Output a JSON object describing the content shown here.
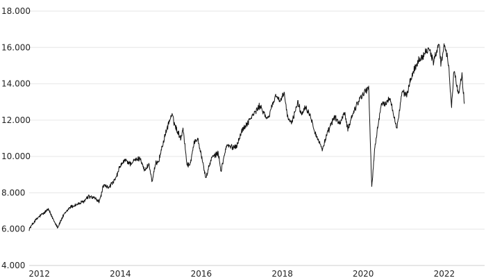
{
  "chart_data": {
    "type": "line",
    "title": "",
    "xlabel": "",
    "ylabel": "",
    "grid": true,
    "ylim": [
      4000,
      18000
    ],
    "xlim": [
      "2011-10-01",
      "2022-12-31"
    ],
    "y_ticks": [
      {
        "value": 4000,
        "label": "4.000"
      },
      {
        "value": 6000,
        "label": "6.000"
      },
      {
        "value": 8000,
        "label": "8.000"
      },
      {
        "value": 10000,
        "label": "10.000"
      },
      {
        "value": 12000,
        "label": "12.000"
      },
      {
        "value": 14000,
        "label": "14.000"
      },
      {
        "value": 16000,
        "label": "16.000"
      },
      {
        "value": 18000,
        "label": "18.000"
      }
    ],
    "x_ticks": [
      {
        "value": "2012-01-01",
        "label": "2012"
      },
      {
        "value": "2014-01-01",
        "label": "2014"
      },
      {
        "value": "2016-01-01",
        "label": "2016"
      },
      {
        "value": "2018-01-01",
        "label": "2018"
      },
      {
        "value": "2020-01-01",
        "label": "2020"
      },
      {
        "value": "2022-01-01",
        "label": "2022"
      }
    ],
    "series": [
      {
        "color": "#111111",
        "points": [
          [
            "2011-10-01",
            6000
          ],
          [
            "2011-11-15",
            6400
          ],
          [
            "2012-01-01",
            6700
          ],
          [
            "2012-02-15",
            6900
          ],
          [
            "2012-03-20",
            7100
          ],
          [
            "2012-05-01",
            6600
          ],
          [
            "2012-06-15",
            6100
          ],
          [
            "2012-08-01",
            6700
          ],
          [
            "2012-10-01",
            7200
          ],
          [
            "2012-12-01",
            7350
          ],
          [
            "2013-02-01",
            7500
          ],
          [
            "2013-03-20",
            7800
          ],
          [
            "2013-05-15",
            7700
          ],
          [
            "2013-06-25",
            7500
          ],
          [
            "2013-08-01",
            8400
          ],
          [
            "2013-09-15",
            8300
          ],
          [
            "2013-11-15",
            8700
          ],
          [
            "2014-01-01",
            9500
          ],
          [
            "2014-02-15",
            9800
          ],
          [
            "2014-04-01",
            9600
          ],
          [
            "2014-05-15",
            9800
          ],
          [
            "2014-07-01",
            9900
          ],
          [
            "2014-08-10",
            9200
          ],
          [
            "2014-09-15",
            9600
          ],
          [
            "2014-10-15",
            8600
          ],
          [
            "2014-11-15",
            9600
          ],
          [
            "2014-12-15",
            9800
          ],
          [
            "2015-01-15",
            10600
          ],
          [
            "2015-03-10",
            11800
          ],
          [
            "2015-04-10",
            12300
          ],
          [
            "2015-05-15",
            11600
          ],
          [
            "2015-07-01",
            11000
          ],
          [
            "2015-07-20",
            11600
          ],
          [
            "2015-08-24",
            9600
          ],
          [
            "2015-09-20",
            9500
          ],
          [
            "2015-10-25",
            10700
          ],
          [
            "2015-12-01",
            11000
          ],
          [
            "2016-01-20",
            9500
          ],
          [
            "2016-02-11",
            8800
          ],
          [
            "2016-04-01",
            9900
          ],
          [
            "2016-06-01",
            10200
          ],
          [
            "2016-06-27",
            9200
          ],
          [
            "2016-08-15",
            10600
          ],
          [
            "2016-10-15",
            10500
          ],
          [
            "2016-11-15",
            10600
          ],
          [
            "2016-12-31",
            11400
          ],
          [
            "2017-02-15",
            11800
          ],
          [
            "2017-04-01",
            12200
          ],
          [
            "2017-06-15",
            12800
          ],
          [
            "2017-08-20",
            12000
          ],
          [
            "2017-10-01",
            12800
          ],
          [
            "2017-11-05",
            13400
          ],
          [
            "2017-12-15",
            13000
          ],
          [
            "2018-01-20",
            13500
          ],
          [
            "2018-02-15",
            12200
          ],
          [
            "2018-03-25",
            11800
          ],
          [
            "2018-05-20",
            13000
          ],
          [
            "2018-06-25",
            12300
          ],
          [
            "2018-07-25",
            12800
          ],
          [
            "2018-09-15",
            12200
          ],
          [
            "2018-10-25",
            11300
          ],
          [
            "2018-12-27",
            10400
          ],
          [
            "2019-02-15",
            11300
          ],
          [
            "2019-04-15",
            12200
          ],
          [
            "2019-06-01",
            11800
          ],
          [
            "2019-07-15",
            12400
          ],
          [
            "2019-08-15",
            11500
          ],
          [
            "2019-10-01",
            12400
          ],
          [
            "2019-12-01",
            13200
          ],
          [
            "2020-01-20",
            13600
          ],
          [
            "2020-02-19",
            13800
          ],
          [
            "2020-03-18",
            8300
          ],
          [
            "2020-04-15",
            10500
          ],
          [
            "2020-06-08",
            12800
          ],
          [
            "2020-07-15",
            12900
          ],
          [
            "2020-09-01",
            13200
          ],
          [
            "2020-10-30",
            11500
          ],
          [
            "2020-12-15",
            13500
          ],
          [
            "2021-01-30",
            13400
          ],
          [
            "2021-03-15",
            14500
          ],
          [
            "2021-05-15",
            15300
          ],
          [
            "2021-07-01",
            15600
          ],
          [
            "2021-08-13",
            16000
          ],
          [
            "2021-09-25",
            15200
          ],
          [
            "2021-11-17",
            16300
          ],
          [
            "2021-12-01",
            15100
          ],
          [
            "2022-01-05",
            16200
          ],
          [
            "2022-02-10",
            15000
          ],
          [
            "2022-03-08",
            12800
          ],
          [
            "2022-03-29",
            14800
          ],
          [
            "2022-04-25",
            13800
          ],
          [
            "2022-05-12",
            13400
          ],
          [
            "2022-06-10",
            14500
          ],
          [
            "2022-07-01",
            12900
          ]
        ]
      }
    ]
  }
}
